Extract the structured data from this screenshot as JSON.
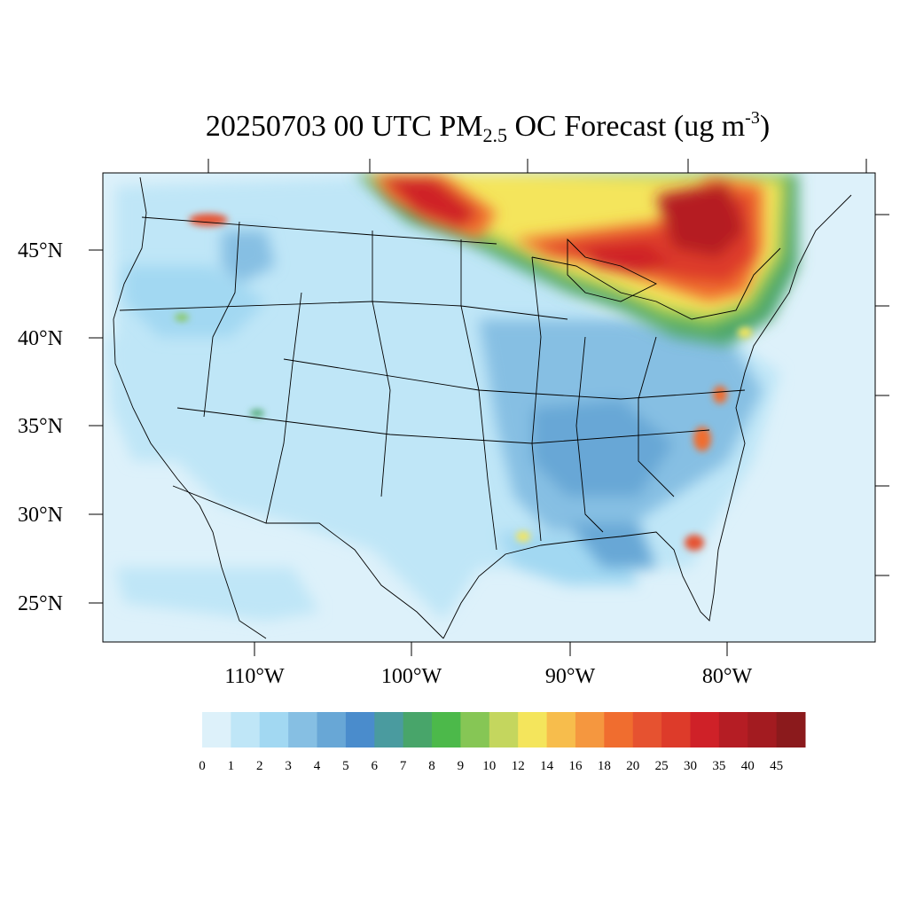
{
  "title": {
    "prefix": "20250703 00 UTC PM",
    "subscript": "2.5",
    "middle": " OC Forecast (ug m",
    "superscript": "-3",
    "suffix": ")"
  },
  "lat_labels": [
    "45°N",
    "40°N",
    "35°N",
    "30°N",
    "25°N"
  ],
  "lon_labels": [
    "110°W",
    "100°W",
    "90°W",
    "80°W"
  ],
  "colorbar": {
    "labels": [
      "0",
      "1",
      "2",
      "3",
      "4",
      "5",
      "6",
      "7",
      "8",
      "9",
      "10",
      "12",
      "14",
      "16",
      "18",
      "20",
      "25",
      "30",
      "35",
      "40",
      "45"
    ],
    "colors": [
      "#ddf1fa",
      "#bfe6f7",
      "#a2d8f2",
      "#86bfe3",
      "#68a7d6",
      "#4a8ccc",
      "#4a9b9f",
      "#48a56a",
      "#4cb94a",
      "#86c655",
      "#c4d65e",
      "#f4e55c",
      "#f7bd4c",
      "#f5973f",
      "#f06d2f",
      "#e65230",
      "#dd3b2a",
      "#cf2128",
      "#b51d24",
      "#a31b20",
      "#8b1a1c"
    ]
  },
  "map": {
    "background_color": "#ddf1fa",
    "hotspots": [
      {
        "name": "great-lakes-canada-plume",
        "color": "#cf2128"
      },
      {
        "name": "north-plains-plume",
        "color": "#cf2128"
      },
      {
        "name": "southeast-fires",
        "color": "#e65230"
      }
    ]
  }
}
